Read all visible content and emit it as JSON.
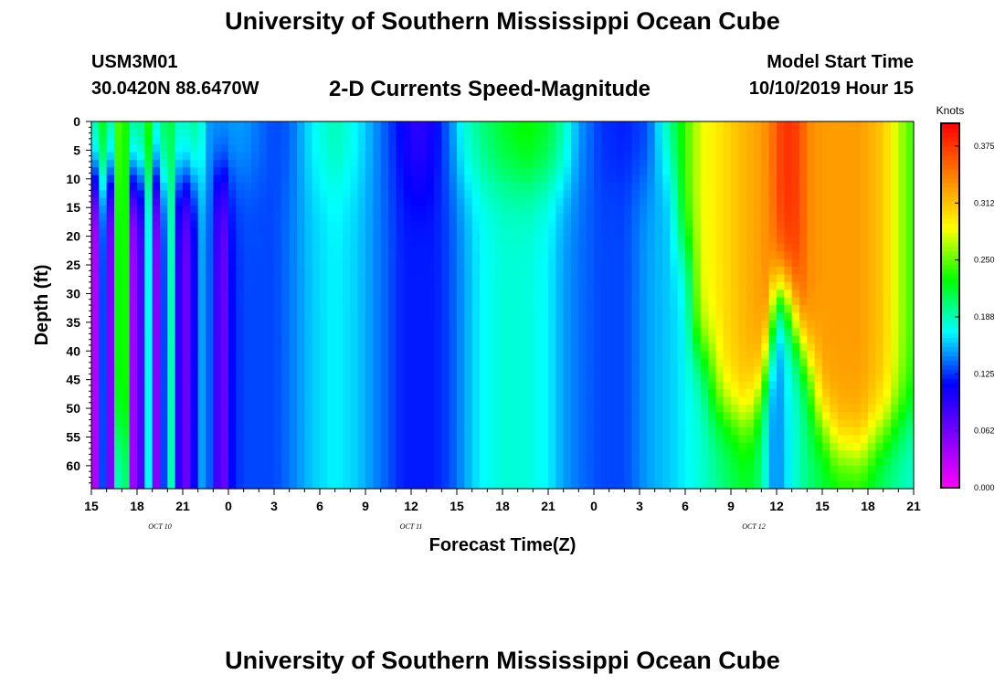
{
  "header": {
    "title": "University of Southern Mississippi Ocean Cube",
    "station_id": "USM3M01",
    "station_coords": "30.0420N 88.6470W",
    "chart_title": "2-D Currents Speed-Magnitude",
    "model_start_label": "Model Start Time",
    "model_start_value": "10/10/2019 Hour 15"
  },
  "footer": {
    "title": "University of Southern Mississippi Ocean Cube"
  },
  "chart_data": {
    "type": "heatmap",
    "title": "2-D Currents Speed-Magnitude",
    "xlabel": "Forecast Time(Z)",
    "ylabel": "Depth (ft)",
    "x_unit": "hours since 10/10/2019 15Z",
    "xlim": [
      0,
      54
    ],
    "ylim": [
      0,
      64
    ],
    "y_inverted": true,
    "x_tick_values": [
      0,
      3,
      6,
      9,
      12,
      15,
      18,
      21,
      24,
      27,
      30,
      33,
      36,
      39,
      42,
      45,
      48,
      51,
      54
    ],
    "x_tick_labels": [
      "15",
      "18",
      "21",
      "0",
      "3",
      "6",
      "9",
      "12",
      "15",
      "18",
      "21",
      "0",
      "3",
      "6",
      "9",
      "12",
      "15",
      "18",
      "21"
    ],
    "y_tick_values": [
      0,
      5,
      10,
      15,
      20,
      25,
      30,
      35,
      40,
      45,
      50,
      55,
      60
    ],
    "y_tick_labels": [
      "0",
      "5",
      "10",
      "15",
      "20",
      "25",
      "30",
      "35",
      "40",
      "45",
      "50",
      "55",
      "60"
    ],
    "date_labels": [
      {
        "text": "OCT 10",
        "x": 4.5
      },
      {
        "text": "OCT 11",
        "x": 21
      },
      {
        "text": "OCT 12",
        "x": 43.5
      }
    ],
    "colorbar": {
      "unit_label": "Knots",
      "range": [
        0,
        0.4
      ],
      "tick_values": [
        0,
        0.0625,
        0.125,
        0.1875,
        0.25,
        0.3125,
        0.375
      ],
      "tick_labels": [
        "0.000",
        "0.062",
        "0.125",
        "0.188",
        "0.250",
        "0.312",
        "0.375"
      ],
      "colors": [
        "#ff00ff",
        "#8000ff",
        "#0000ff",
        "#00ffff",
        "#00ff00",
        "#ffff00",
        "#ff8000",
        "#ff0000"
      ]
    },
    "columns": [
      {
        "t": 0.0,
        "top": 0.19,
        "bottom": 0.01,
        "trans": 10
      },
      {
        "t": 0.3,
        "top": 0.2,
        "bottom": 0.04,
        "trans": 10
      },
      {
        "t": 0.8,
        "top": 0.23,
        "bottom": 0.14,
        "trans": 10
      },
      {
        "t": 1.3,
        "top": 0.19,
        "bottom": 0.05,
        "trans": 10
      },
      {
        "t": 1.8,
        "top": 0.25,
        "bottom": 0.2,
        "trans": 55
      },
      {
        "t": 2.3,
        "top": 0.23,
        "bottom": 0.2,
        "trans": 55
      },
      {
        "t": 2.7,
        "top": 0.2,
        "bottom": 0.04,
        "trans": 10
      },
      {
        "t": 3.2,
        "top": 0.2,
        "bottom": 0.07,
        "trans": 10
      },
      {
        "t": 3.8,
        "top": 0.24,
        "bottom": 0.18,
        "trans": 10
      },
      {
        "t": 4.3,
        "top": 0.18,
        "bottom": 0.04,
        "trans": 10
      },
      {
        "t": 4.9,
        "top": 0.22,
        "bottom": 0.16,
        "trans": 10
      },
      {
        "t": 5.4,
        "top": 0.21,
        "bottom": 0.2,
        "trans": 10
      },
      {
        "t": 5.9,
        "top": 0.18,
        "bottom": 0.05,
        "trans": 10
      },
      {
        "t": 6.5,
        "top": 0.2,
        "bottom": 0.08,
        "trans": 10
      },
      {
        "t": 7.1,
        "top": 0.19,
        "bottom": 0.15,
        "trans": 10
      },
      {
        "t": 7.6,
        "top": 0.15,
        "bottom": 0.15,
        "trans": 10
      },
      {
        "t": 8.4,
        "top": 0.15,
        "bottom": 0.07,
        "trans": 10
      },
      {
        "t": 8.8,
        "top": 0.15,
        "bottom": 0.07,
        "trans": 10
      },
      {
        "t": 9.3,
        "top": 0.15,
        "bottom": 0.12,
        "trans": 10
      },
      {
        "t": 10.0,
        "top": 0.15,
        "bottom": 0.13,
        "trans": 10
      },
      {
        "t": 12.0,
        "top": 0.13,
        "bottom": 0.13,
        "trans": 10
      },
      {
        "t": 13.0,
        "top": 0.135,
        "bottom": 0.14,
        "trans": 10
      },
      {
        "t": 14.5,
        "top": 0.17,
        "bottom": 0.16,
        "trans": 10
      },
      {
        "t": 16.0,
        "top": 0.19,
        "bottom": 0.17,
        "trans": 10
      },
      {
        "t": 17.5,
        "top": 0.17,
        "bottom": 0.16,
        "trans": 10
      },
      {
        "t": 19.0,
        "top": 0.14,
        "bottom": 0.14,
        "trans": 10
      },
      {
        "t": 20.5,
        "top": 0.11,
        "bottom": 0.12,
        "trans": 10
      },
      {
        "t": 21.5,
        "top": 0.09,
        "bottom": 0.12,
        "trans": 10
      },
      {
        "t": 22.5,
        "top": 0.11,
        "bottom": 0.12,
        "trans": 10
      },
      {
        "t": 23.5,
        "top": 0.14,
        "bottom": 0.13,
        "trans": 10
      },
      {
        "t": 24.5,
        "top": 0.18,
        "bottom": 0.15,
        "trans": 10
      },
      {
        "t": 25.5,
        "top": 0.2,
        "bottom": 0.17,
        "trans": 10
      },
      {
        "t": 27.0,
        "top": 0.22,
        "bottom": 0.18,
        "trans": 10
      },
      {
        "t": 28.5,
        "top": 0.235,
        "bottom": 0.18,
        "trans": 10
      },
      {
        "t": 30.0,
        "top": 0.22,
        "bottom": 0.17,
        "trans": 10
      },
      {
        "t": 31.0,
        "top": 0.19,
        "bottom": 0.15,
        "trans": 10
      },
      {
        "t": 32.0,
        "top": 0.15,
        "bottom": 0.14,
        "trans": 10
      },
      {
        "t": 33.5,
        "top": 0.125,
        "bottom": 0.13,
        "trans": 10
      },
      {
        "t": 35.0,
        "top": 0.12,
        "bottom": 0.13,
        "trans": 10
      },
      {
        "t": 36.5,
        "top": 0.13,
        "bottom": 0.15,
        "trans": 10
      },
      {
        "t": 38.0,
        "top": 0.2,
        "bottom": 0.16,
        "trans": 8
      },
      {
        "t": 39.0,
        "top": 0.24,
        "bottom": 0.17,
        "trans": 22
      },
      {
        "t": 40.0,
        "top": 0.28,
        "bottom": 0.18,
        "trans": 40
      },
      {
        "t": 41.5,
        "top": 0.3,
        "bottom": 0.2,
        "trans": 50
      },
      {
        "t": 43.0,
        "top": 0.32,
        "bottom": 0.22,
        "trans": 52
      },
      {
        "t": 44.0,
        "top": 0.33,
        "bottom": 0.2,
        "trans": 47
      },
      {
        "t": 44.5,
        "top": 0.34,
        "bottom": 0.16,
        "trans": 40
      },
      {
        "t": 45.0,
        "top": 0.36,
        "bottom": 0.14,
        "trans": 30
      },
      {
        "t": 45.5,
        "top": 0.38,
        "bottom": 0.16,
        "trans": 30
      },
      {
        "t": 46.5,
        "top": 0.37,
        "bottom": 0.19,
        "trans": 37
      },
      {
        "t": 47.0,
        "top": 0.34,
        "bottom": 0.2,
        "trans": 42
      },
      {
        "t": 48.0,
        "top": 0.33,
        "bottom": 0.21,
        "trans": 52
      },
      {
        "t": 49.0,
        "top": 0.33,
        "bottom": 0.22,
        "trans": 57
      },
      {
        "t": 50.5,
        "top": 0.33,
        "bottom": 0.22,
        "trans": 58
      },
      {
        "t": 52.0,
        "top": 0.31,
        "bottom": 0.2,
        "trans": 54
      },
      {
        "t": 53.0,
        "top": 0.27,
        "bottom": 0.19,
        "trans": 52
      },
      {
        "t": 54.0,
        "top": 0.24,
        "bottom": 0.18,
        "trans": 50
      }
    ]
  }
}
